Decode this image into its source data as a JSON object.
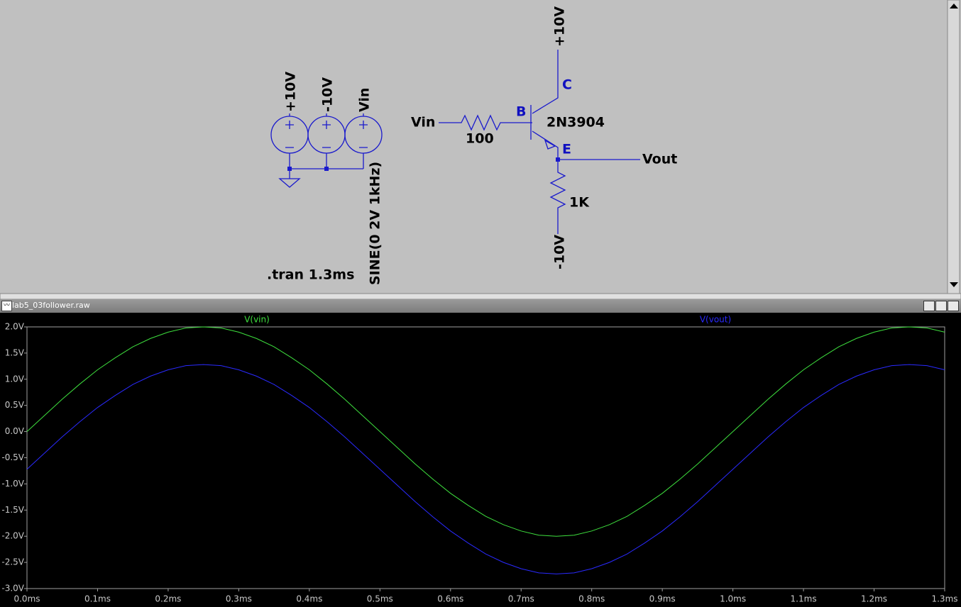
{
  "schematic": {
    "source_labels": [
      "+10V",
      "-10V",
      "Vin"
    ],
    "source_value": "SINE(0 2V 1kHz)",
    "directive": ".tran 1.3ms",
    "input_label": "Vin",
    "base_resistor": "100",
    "transistor": "2N3904",
    "pins": [
      "B",
      "C",
      "E"
    ],
    "output_label": "Vout",
    "emitter_resistor": "1K",
    "collector_supply": "+10V",
    "emitter_supply": "-10V"
  },
  "window": {
    "title": "lab5_03follower.raw"
  },
  "chart_data": {
    "type": "line",
    "x": [
      0,
      0.025,
      0.05,
      0.075,
      0.1,
      0.125,
      0.15,
      0.175,
      0.2,
      0.225,
      0.25,
      0.275,
      0.3,
      0.325,
      0.35,
      0.375,
      0.4,
      0.425,
      0.45,
      0.475,
      0.5,
      0.525,
      0.55,
      0.575,
      0.6,
      0.625,
      0.65,
      0.675,
      0.7,
      0.725,
      0.75,
      0.775,
      0.8,
      0.825,
      0.85,
      0.875,
      0.9,
      0.925,
      0.95,
      0.975,
      1,
      1.025,
      1.05,
      1.075,
      1.1,
      1.125,
      1.15,
      1.175,
      1.2,
      1.225,
      1.25,
      1.275,
      1.3
    ],
    "series": [
      {
        "name": "V(vin)",
        "color": "#3ee03e",
        "values": [
          0,
          0.31,
          0.62,
          0.91,
          1.18,
          1.41,
          1.62,
          1.78,
          1.9,
          1.98,
          2,
          1.98,
          1.9,
          1.78,
          1.62,
          1.41,
          1.18,
          0.91,
          0.62,
          0.31,
          0,
          -0.31,
          -0.62,
          -0.91,
          -1.18,
          -1.41,
          -1.62,
          -1.78,
          -1.9,
          -1.98,
          -2,
          -1.98,
          -1.9,
          -1.78,
          -1.62,
          -1.41,
          -1.18,
          -0.91,
          -0.62,
          -0.31,
          0,
          0.31,
          0.62,
          0.91,
          1.18,
          1.41,
          1.62,
          1.78,
          1.9,
          1.98,
          2,
          1.98,
          1.9
        ]
      },
      {
        "name": "V(vout)",
        "color": "#2a2aff",
        "values": [
          -0.72,
          -0.41,
          -0.1,
          0.19,
          0.46,
          0.69,
          0.9,
          1.06,
          1.18,
          1.26,
          1.28,
          1.26,
          1.18,
          1.06,
          0.9,
          0.69,
          0.46,
          0.19,
          -0.1,
          -0.41,
          -0.72,
          -1.03,
          -1.34,
          -1.63,
          -1.9,
          -2.13,
          -2.34,
          -2.5,
          -2.62,
          -2.7,
          -2.72,
          -2.7,
          -2.62,
          -2.5,
          -2.34,
          -2.13,
          -1.9,
          -1.63,
          -1.34,
          -1.03,
          -0.72,
          -0.41,
          -0.1,
          0.19,
          0.46,
          0.69,
          0.9,
          1.06,
          1.18,
          1.26,
          1.28,
          1.26,
          1.18
        ]
      }
    ],
    "xlim": [
      0,
      1.3
    ],
    "ylim": [
      -3,
      2
    ],
    "xticks": [
      {
        "value": 0,
        "label": "0.0ms"
      },
      {
        "value": 0.1,
        "label": "0.1ms"
      },
      {
        "value": 0.2,
        "label": "0.2ms"
      },
      {
        "value": 0.3,
        "label": "0.3ms"
      },
      {
        "value": 0.4,
        "label": "0.4ms"
      },
      {
        "value": 0.5,
        "label": "0.5ms"
      },
      {
        "value": 0.6,
        "label": "0.6ms"
      },
      {
        "value": 0.7,
        "label": "0.7ms"
      },
      {
        "value": 0.8,
        "label": "0.8ms"
      },
      {
        "value": 0.9,
        "label": "0.9ms"
      },
      {
        "value": 1.0,
        "label": "1.0ms"
      },
      {
        "value": 1.1,
        "label": "1.1ms"
      },
      {
        "value": 1.2,
        "label": "1.2ms"
      },
      {
        "value": 1.3,
        "label": "1.3ms"
      }
    ],
    "yticks": [
      {
        "value": 2,
        "label": "2.0V"
      },
      {
        "value": 1.5,
        "label": "1.5V"
      },
      {
        "value": 1,
        "label": "1.0V"
      },
      {
        "value": 0.5,
        "label": "0.5V"
      },
      {
        "value": 0,
        "label": "0.0V"
      },
      {
        "value": -0.5,
        "label": "-0.5V"
      },
      {
        "value": -1,
        "label": "-1.0V"
      },
      {
        "value": -1.5,
        "label": "-1.5V"
      },
      {
        "value": -2,
        "label": "-2.0V"
      },
      {
        "value": -2.5,
        "label": "-2.5V"
      },
      {
        "value": -3,
        "label": "-3.0V"
      }
    ]
  }
}
